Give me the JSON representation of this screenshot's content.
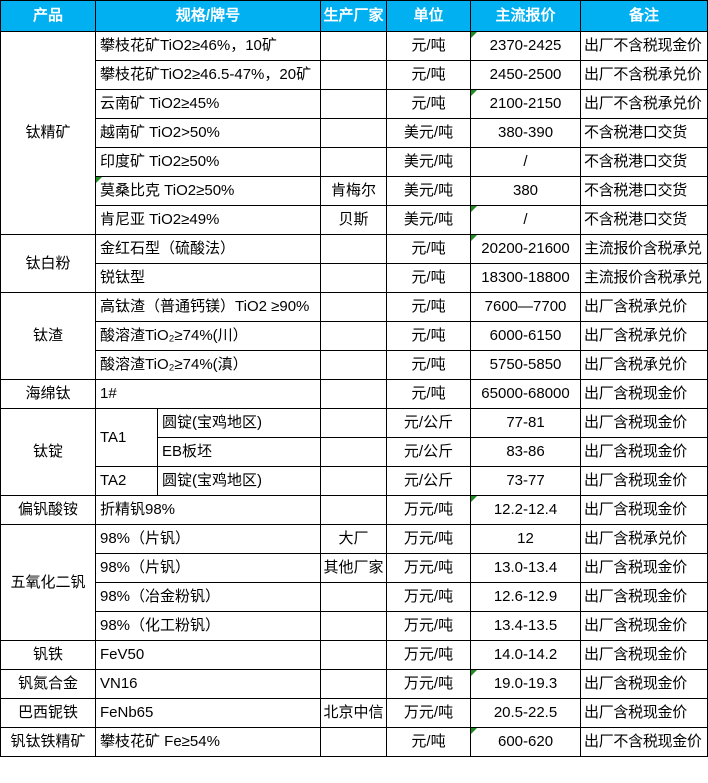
{
  "colors": {
    "header_bg": "#00B0F0",
    "header_text": "#FFFFFF",
    "grid_border": "#000000",
    "cell_flag_green": "#1E8E1E",
    "body_text": "#000000"
  },
  "table": {
    "headers": {
      "product": "产品",
      "spec": "规格/牌号",
      "manufacturer": "生产厂家",
      "unit": "单位",
      "price": "主流报价",
      "remark": "备注"
    },
    "rows": [
      {
        "product": "钛精矿",
        "spec": "攀枝花矿TiO2≥46%，10矿",
        "mfr": "",
        "unit": "元/吨",
        "price": "2370-2425",
        "remark": "出厂不含税现金价",
        "price_flag": true
      },
      {
        "spec": "攀枝花矿TiO2≥46.5-47%，20矿",
        "mfr": "",
        "unit": "元/吨",
        "price": "2450-2500",
        "remark": "出厂不含税承兑价"
      },
      {
        "spec": "云南矿 TiO2≥45%",
        "mfr": "",
        "unit": "元/吨",
        "price": "2100-2150",
        "remark": "出厂不含税承兑价",
        "price_flag": true
      },
      {
        "spec": "越南矿 TiO2>50%",
        "mfr": "",
        "unit": "美元/吨",
        "price": "380-390",
        "remark": "不含税港口交货"
      },
      {
        "spec": "印度矿 TiO2≥50%",
        "mfr": "",
        "unit": "美元/吨",
        "price": "/",
        "remark": "不含税港口交货"
      },
      {
        "spec": "莫桑比克 TiO2≥50%",
        "mfr": "肯梅尔",
        "unit": "美元/吨",
        "price": "380",
        "remark": "不含税港口交货",
        "spec_flag": true
      },
      {
        "spec": "肯尼亚 TiO2≥49%",
        "mfr": "贝斯",
        "unit": "美元/吨",
        "price": "/",
        "remark": "不含税港口交货",
        "price_flag": true
      },
      {
        "product": "钛白粉",
        "spec": "金红石型（硫酸法）",
        "mfr": "",
        "unit": "元/吨",
        "price": "20200-21600",
        "remark": "主流报价含税承兑",
        "price_flag": true
      },
      {
        "spec": "锐钛型",
        "mfr": "",
        "unit": "元/吨",
        "price": "18300-18800",
        "remark": "主流报价含税承兑"
      },
      {
        "product": "钛渣",
        "spec": "高钛渣（普通钙镁）TiO2 ≥90%",
        "mfr": "",
        "unit": "元/吨",
        "price": "7600—7700",
        "remark": "出厂含税承兑价"
      },
      {
        "spec": "酸溶渣TiO₂≥74%(川）",
        "mfr": "",
        "unit": "元/吨",
        "price": "6000-6150",
        "remark": "出厂含税承兑价"
      },
      {
        "spec": "酸溶渣TiO₂≥74%(滇）",
        "mfr": "",
        "unit": "元/吨",
        "price": "5750-5850",
        "remark": "出厂含税承兑价"
      },
      {
        "product": "海绵钛",
        "spec": "1#",
        "mfr": "",
        "unit": "元/吨",
        "price": "65000-68000",
        "remark": "出厂含税现金价"
      },
      {
        "product": "钛锭",
        "spec_a": "TA1",
        "spec_b": "圆锭(宝鸡地区)",
        "mfr": "",
        "unit": "元/公斤",
        "price": "77-81",
        "remark": "出厂含税现金价"
      },
      {
        "spec_b": "EB板坯",
        "mfr": "",
        "unit": "元/公斤",
        "price": "83-86",
        "remark": "出厂含税现金价"
      },
      {
        "spec_a": "TA2",
        "spec_b": "圆锭(宝鸡地区)",
        "mfr": "",
        "unit": "元/公斤",
        "price": "73-77",
        "remark": "出厂含税现金价"
      },
      {
        "product": "偏钒酸铵",
        "spec": "折精钒98%",
        "mfr": "",
        "unit": "万元/吨",
        "price": "12.2-12.4",
        "remark": "出厂含税现金价",
        "price_flag": true
      },
      {
        "product": "五氧化二钒",
        "spec": "98%（片钒）",
        "mfr": "大厂",
        "unit": "万元/吨",
        "price": "12",
        "remark": "出厂含税承兑价"
      },
      {
        "spec": "98%（片钒）",
        "mfr": "其他厂家",
        "unit": "万元/吨",
        "price": "13.0-13.4",
        "remark": "出厂含税现金价"
      },
      {
        "spec": "98%（冶金粉钒）",
        "mfr": "",
        "unit": "万元/吨",
        "price": "12.6-12.9",
        "remark": "出厂含税现金价"
      },
      {
        "spec": "98%（化工粉钒）",
        "mfr": "",
        "unit": "万元/吨",
        "price": "13.4-13.5",
        "remark": "出厂含税现金价"
      },
      {
        "product": "钒铁",
        "spec": "FeV50",
        "mfr": "",
        "unit": "万元/吨",
        "price": "14.0-14.2",
        "remark": "出厂含税现金价"
      },
      {
        "product": "钒氮合金",
        "spec": "VN16",
        "mfr": "",
        "unit": "万元/吨",
        "price": "19.0-19.3",
        "remark": "出厂含税现金价",
        "price_flag": true
      },
      {
        "product": "巴西铌铁",
        "spec": "FeNb65",
        "mfr": "北京中信",
        "unit": "万元/吨",
        "price": "20.5-22.5",
        "remark": "出厂含税现金价"
      },
      {
        "product": "钒钛铁精矿",
        "spec": "攀枝花矿 Fe≥54%",
        "mfr": "",
        "unit": "元/吨",
        "price": "600-620",
        "remark": "出厂不含税现金价",
        "price_flag": true
      }
    ]
  }
}
